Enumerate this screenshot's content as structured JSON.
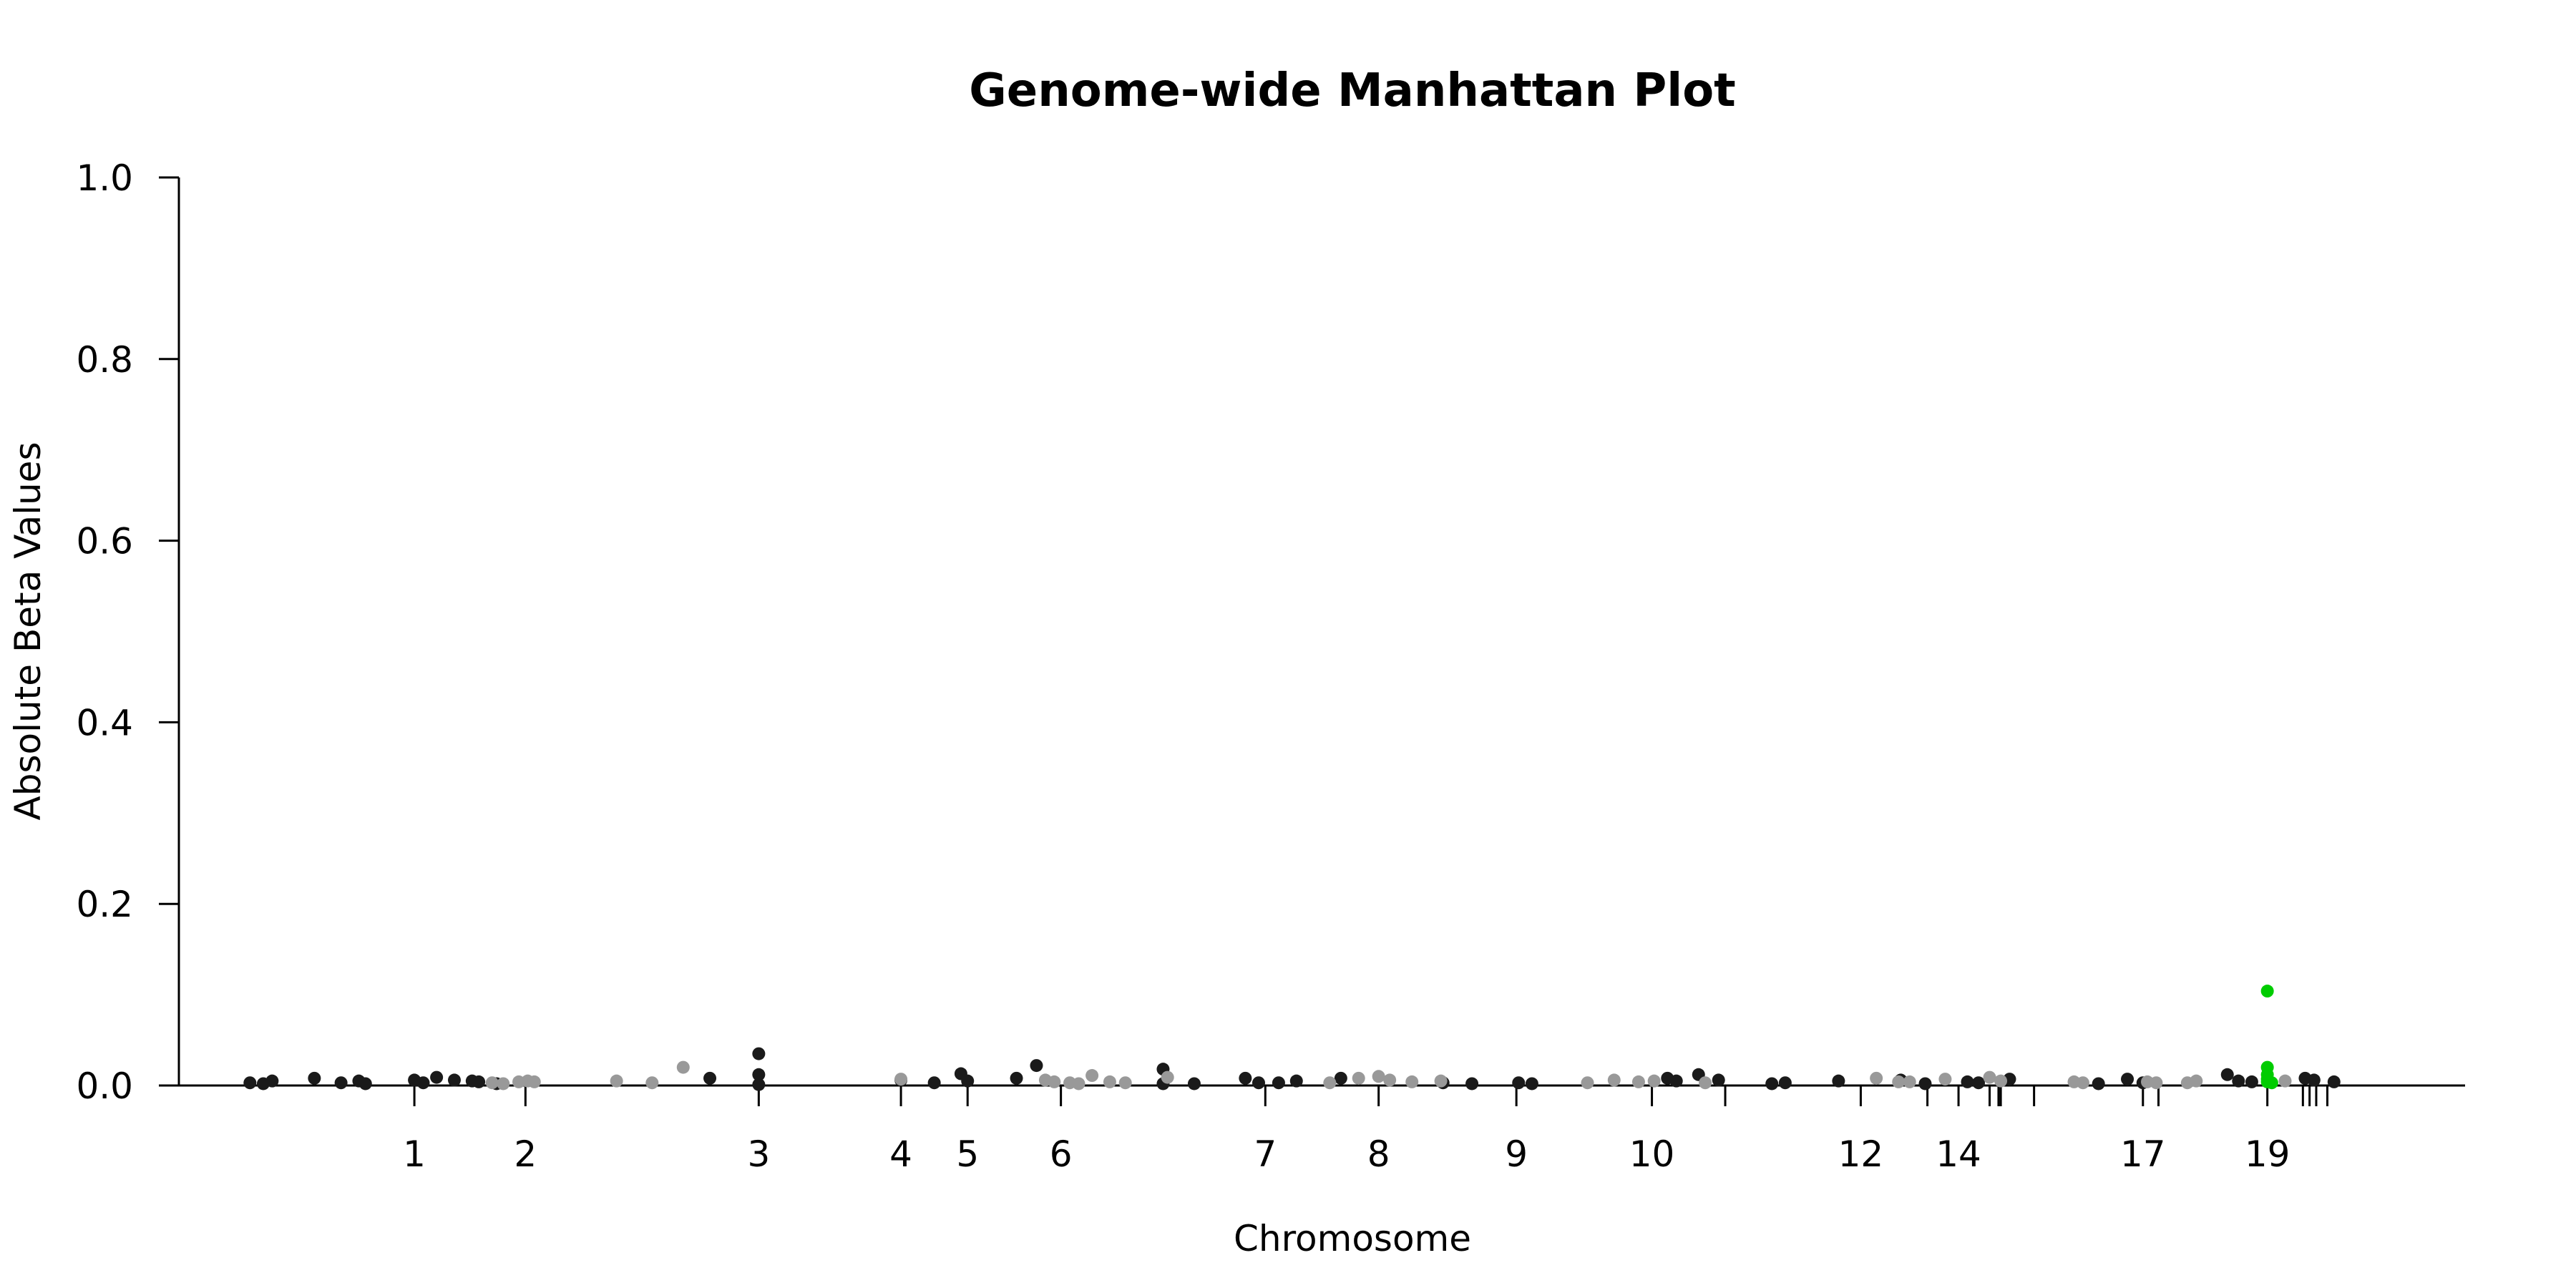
{
  "chart_data": {
    "type": "scatter",
    "title": "Genome-wide Manhattan Plot",
    "xlabel": "Chromosome",
    "ylabel": "Absolute Beta Values",
    "ylim": [
      0,
      1
    ],
    "yticks": [
      "0.0",
      "0.2",
      "0.4",
      "0.6",
      "0.8",
      "1.0"
    ],
    "xlim": [
      0,
      1
    ],
    "xticks": [
      {
        "label": "1",
        "x": 0.077
      },
      {
        "label": "2",
        "x": 0.127
      },
      {
        "label": "3",
        "x": 0.232
      },
      {
        "label": "4",
        "x": 0.296
      },
      {
        "label": "5",
        "x": 0.326
      },
      {
        "label": "6",
        "x": 0.368
      },
      {
        "label": "7",
        "x": 0.46
      },
      {
        "label": "8",
        "x": 0.511
      },
      {
        "label": "9",
        "x": 0.573
      },
      {
        "label": "10",
        "x": 0.634
      },
      {
        "label": "12",
        "x": 0.728
      },
      {
        "label": "14",
        "x": 0.772
      },
      {
        "label": "17",
        "x": 0.855
      },
      {
        "label": "19",
        "x": 0.911
      }
    ],
    "unlabeled_ticks": [
      0.667,
      0.758,
      0.786,
      0.791,
      0.791,
      0.79,
      0.806,
      0.862,
      0.927,
      0.93,
      0.933,
      0.938
    ],
    "colors": {
      "dark": "#1a1a1a",
      "light": "#999999",
      "highlight": "#00cc00"
    },
    "series": [
      {
        "color": "dark",
        "points": [
          [
            0.003,
            0.003
          ],
          [
            0.009,
            0.002
          ],
          [
            0.013,
            0.005
          ],
          [
            0.032,
            0.008
          ],
          [
            0.044,
            0.003
          ],
          [
            0.052,
            0.005
          ],
          [
            0.055,
            0.002
          ],
          [
            0.077,
            0.006
          ],
          [
            0.081,
            0.003
          ],
          [
            0.087,
            0.009
          ],
          [
            0.095,
            0.006
          ],
          [
            0.103,
            0.005
          ],
          [
            0.106,
            0.004
          ],
          [
            0.114,
            0.002
          ],
          [
            0.21,
            0.008
          ],
          [
            0.232,
            0.035
          ],
          [
            0.232,
            0.012
          ],
          [
            0.232,
            0.001
          ],
          [
            0.296,
            0.006
          ],
          [
            0.311,
            0.003
          ],
          [
            0.323,
            0.013
          ],
          [
            0.326,
            0.005
          ],
          [
            0.348,
            0.008
          ],
          [
            0.357,
            0.022
          ],
          [
            0.414,
            0.018
          ],
          [
            0.414,
            0.002
          ],
          [
            0.428,
            0.002
          ],
          [
            0.451,
            0.008
          ],
          [
            0.457,
            0.003
          ],
          [
            0.466,
            0.003
          ],
          [
            0.474,
            0.005
          ],
          [
            0.494,
            0.008
          ],
          [
            0.54,
            0.003
          ],
          [
            0.553,
            0.002
          ],
          [
            0.574,
            0.003
          ],
          [
            0.58,
            0.002
          ],
          [
            0.641,
            0.008
          ],
          [
            0.645,
            0.005
          ],
          [
            0.655,
            0.012
          ],
          [
            0.664,
            0.006
          ],
          [
            0.688,
            0.002
          ],
          [
            0.694,
            0.003
          ],
          [
            0.718,
            0.005
          ],
          [
            0.746,
            0.006
          ],
          [
            0.757,
            0.002
          ],
          [
            0.776,
            0.004
          ],
          [
            0.781,
            0.003
          ],
          [
            0.795,
            0.007
          ],
          [
            0.835,
            0.002
          ],
          [
            0.848,
            0.007
          ],
          [
            0.855,
            0.003
          ],
          [
            0.893,
            0.012
          ],
          [
            0.898,
            0.005
          ],
          [
            0.904,
            0.004
          ],
          [
            0.928,
            0.008
          ],
          [
            0.932,
            0.006
          ],
          [
            0.941,
            0.004
          ]
        ]
      },
      {
        "color": "light",
        "points": [
          [
            0.112,
            0.003
          ],
          [
            0.117,
            0.002
          ],
          [
            0.124,
            0.004
          ],
          [
            0.128,
            0.005
          ],
          [
            0.131,
            0.004
          ],
          [
            0.168,
            0.005
          ],
          [
            0.184,
            0.003
          ],
          [
            0.198,
            0.02
          ],
          [
            0.296,
            0.007
          ],
          [
            0.361,
            0.006
          ],
          [
            0.365,
            0.004
          ],
          [
            0.372,
            0.003
          ],
          [
            0.376,
            0.002
          ],
          [
            0.382,
            0.011
          ],
          [
            0.39,
            0.004
          ],
          [
            0.397,
            0.003
          ],
          [
            0.416,
            0.009
          ],
          [
            0.489,
            0.003
          ],
          [
            0.502,
            0.008
          ],
          [
            0.511,
            0.01
          ],
          [
            0.516,
            0.006
          ],
          [
            0.526,
            0.004
          ],
          [
            0.539,
            0.005
          ],
          [
            0.605,
            0.003
          ],
          [
            0.617,
            0.006
          ],
          [
            0.628,
            0.004
          ],
          [
            0.635,
            0.005
          ],
          [
            0.658,
            0.003
          ],
          [
            0.735,
            0.008
          ],
          [
            0.745,
            0.004
          ],
          [
            0.75,
            0.004
          ],
          [
            0.766,
            0.007
          ],
          [
            0.786,
            0.009
          ],
          [
            0.791,
            0.005
          ],
          [
            0.824,
            0.004
          ],
          [
            0.828,
            0.003
          ],
          [
            0.857,
            0.004
          ],
          [
            0.861,
            0.003
          ],
          [
            0.875,
            0.003
          ],
          [
            0.879,
            0.005
          ],
          [
            0.919,
            0.005
          ]
        ]
      },
      {
        "color": "highlight",
        "points": [
          [
            0.911,
            0.104
          ],
          [
            0.911,
            0.02
          ],
          [
            0.911,
            0.012
          ],
          [
            0.911,
            0.007
          ],
          [
            0.911,
            0.004
          ],
          [
            0.913,
            0.003
          ]
        ]
      }
    ]
  }
}
